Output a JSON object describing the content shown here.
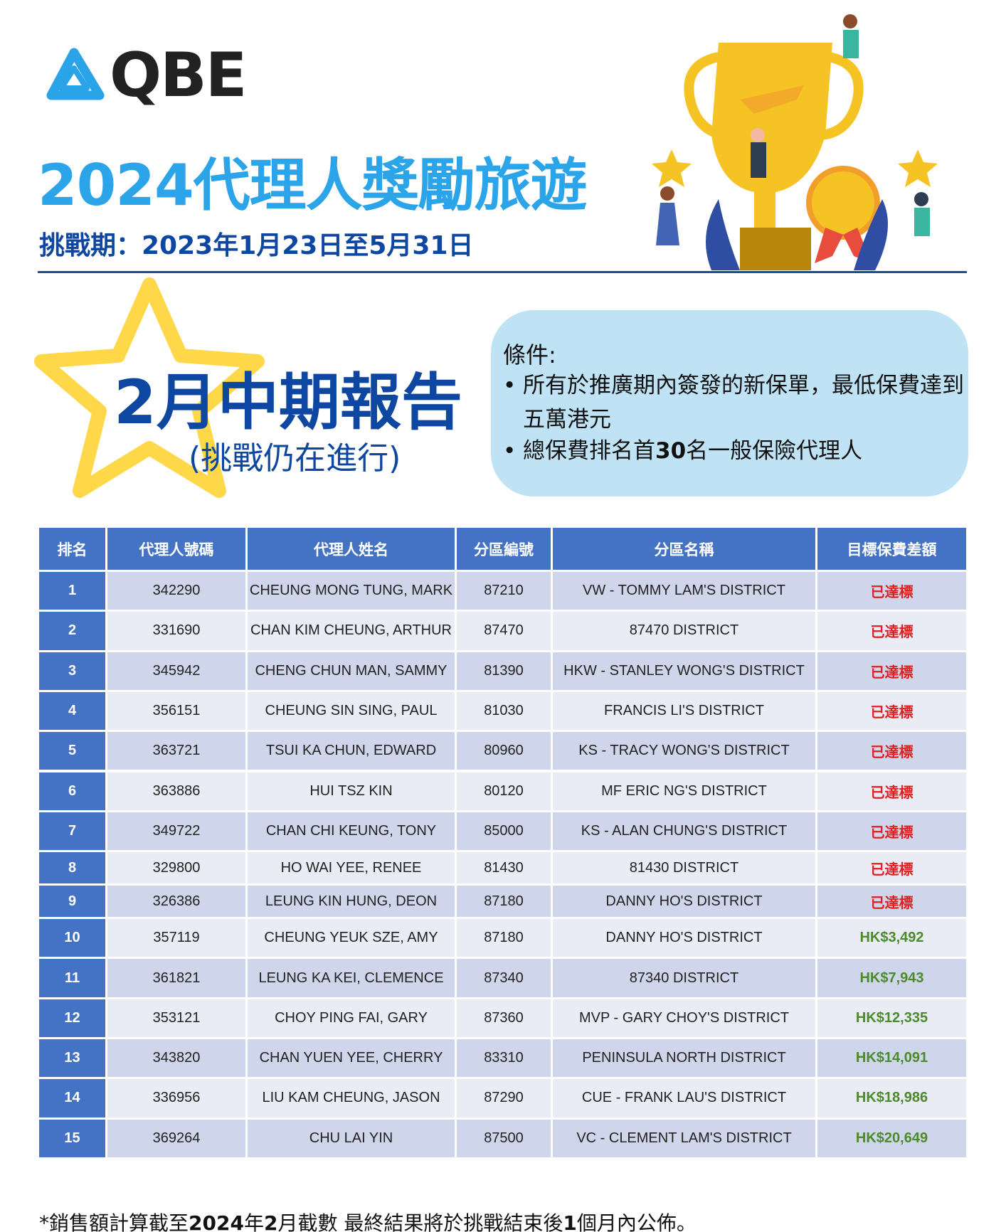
{
  "logo": "QBE",
  "header": {
    "title": "2024代理人獎勵旅遊",
    "period": "挑戰期：2023年1月23日至5月31日"
  },
  "report": {
    "title": "2月中期報告",
    "subtitle": "(挑戰仍在進行)"
  },
  "conditions": {
    "label": "條件:",
    "items": [
      [
        "所有於推廣期內簽發的新保單，最低保費達到五萬港元"
      ],
      [
        "總保費排名首",
        "30",
        "名一般保險代理人"
      ]
    ]
  },
  "table": {
    "headers": [
      "排名",
      "代理人號碼",
      "代理人姓名",
      "分區編號",
      "分區名稱",
      "目標保費差額"
    ],
    "rows": [
      [
        "1",
        "342290",
        "CHEUNG MONG TUNG, MARK",
        "87210",
        "VW - TOMMY LAM'S DISTRICT",
        "已達標"
      ],
      [
        "2",
        "331690",
        "CHAN KIM CHEUNG, ARTHUR",
        "87470",
        "87470 DISTRICT",
        "已達標"
      ],
      [
        "3",
        "345942",
        "CHENG CHUN MAN, SAMMY",
        "81390",
        "HKW - STANLEY WONG'S DISTRICT",
        "已達標"
      ],
      [
        "4",
        "356151",
        "CHEUNG SIN SING, PAUL",
        "81030",
        "FRANCIS LI'S DISTRICT",
        "已達標"
      ],
      [
        "5",
        "363721",
        "TSUI KA CHUN, EDWARD",
        "80960",
        "KS - TRACY WONG'S DISTRICT",
        "已達標"
      ],
      [
        "6",
        "363886",
        "HUI TSZ KIN",
        "80120",
        "MF ERIC NG'S DISTRICT",
        "已達標"
      ],
      [
        "7",
        "349722",
        "CHAN CHI KEUNG, TONY",
        "85000",
        "KS - ALAN CHUNG'S DISTRICT",
        "已達標"
      ],
      [
        "8",
        "329800",
        "HO WAI YEE, RENEE",
        "81430",
        "81430 DISTRICT",
        "已達標"
      ],
      [
        "9",
        "326386",
        "LEUNG KIN HUNG, DEON",
        "87180",
        "DANNY HO'S DISTRICT",
        "已達標"
      ],
      [
        "10",
        "357119",
        "CHEUNG YEUK SZE, AMY",
        "87180",
        "DANNY HO'S DISTRICT",
        "HK$3,492"
      ],
      [
        "11",
        "361821",
        "LEUNG KA KEI, CLEMENCE",
        "87340",
        "87340 DISTRICT",
        "HK$7,943"
      ],
      [
        "12",
        "353121",
        "CHOY PING FAI, GARY",
        "87360",
        "MVP - GARY CHOY'S DISTRICT",
        "HK$12,335"
      ],
      [
        "13",
        "343820",
        "CHAN YUEN YEE, CHERRY",
        "83310",
        "PENINSULA NORTH DISTRICT",
        "HK$14,091"
      ],
      [
        "14",
        "336956",
        "LIU KAM CHEUNG, JASON",
        "87290",
        "CUE - FRANK LAU'S DISTRICT",
        "HK$18,986"
      ],
      [
        "15",
        "369264",
        "CHU LAI YIN",
        "87500",
        "VC - CLEMENT LAM'S DISTRICT",
        "HK$20,649"
      ]
    ]
  },
  "footnote": [
    "*銷售額計算截至",
    "2024",
    "年",
    "2",
    "月截數 最終結果將於挑戰結束後",
    "1",
    "個月內公佈。"
  ]
}
